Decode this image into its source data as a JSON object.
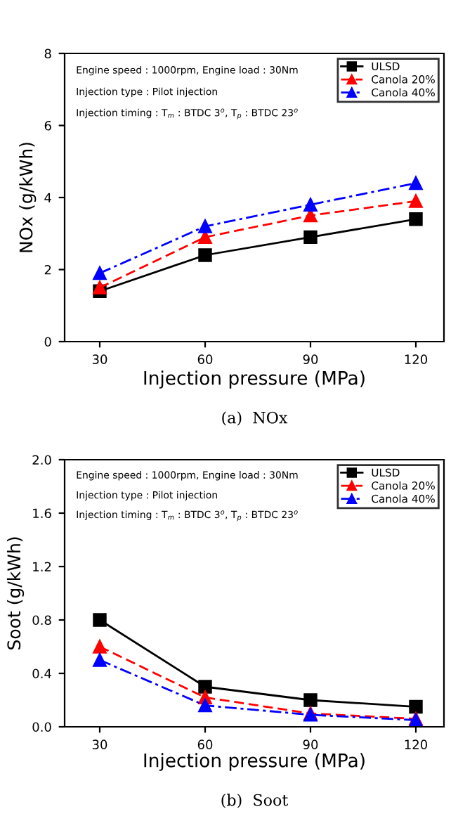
{
  "chart_data": [
    {
      "type": "line",
      "xlabel": "Injection pressure (MPa)",
      "ylabel": "NOx (g/kWh)",
      "x": [
        30,
        60,
        90,
        120
      ],
      "xlim": [
        20,
        128
      ],
      "xticks": [
        30,
        60,
        90,
        120
      ],
      "ylim": [
        0,
        8
      ],
      "yticks": [
        0,
        2,
        4,
        6,
        8
      ],
      "grid": false,
      "legend": "top right",
      "annotations": [
        "Engine speed : 1000rpm, Engine load : 30Nm",
        "Injection type : Pilot injection",
        "Injection timing : T$_{m}$ : BTDC 3$^{o}$, T$_{p}$ : BTDC 23$^{o}$",
        "(a)  NOx"
      ],
      "series": [
        {
          "name": "ULSD",
          "color": "#000000",
          "values": [
            1.4,
            2.4,
            2.9,
            3.4
          ],
          "marker": "square",
          "line_style": "solid"
        },
        {
          "name": "Canola 20%",
          "color": "#ff0000",
          "values": [
            1.5,
            2.9,
            3.5,
            3.9
          ],
          "marker": "triangle",
          "line_style": "dashed"
        },
        {
          "name": "Canola 40%",
          "color": "#0000ff",
          "values": [
            1.9,
            3.2,
            3.8,
            4.4
          ],
          "marker": "triangle",
          "line_style": "dashdot"
        }
      ]
    },
    {
      "type": "line",
      "xlabel": "Injection pressure (MPa)",
      "ylabel": "Soot (g/kWh)",
      "x": [
        30,
        60,
        90,
        120
      ],
      "xlim": [
        20,
        128
      ],
      "xticks": [
        30,
        60,
        90,
        120
      ],
      "ylim": [
        0,
        2.0
      ],
      "yticks": [
        {
          "value": 0,
          "label": "0.0"
        },
        0.4,
        0.8,
        1.2,
        1.6,
        {
          "value": 2,
          "label": "2.0"
        }
      ],
      "grid": false,
      "legend": "top right",
      "annotations": [
        "Engine speed : 1000rpm, Engine load : 30Nm",
        "Injection type : Pilot injection",
        "Injection timing : T$_{m}$ : BTDC 3$^{o}$, T$_{p}$ : BTDC 23$^{o}$",
        "(b)  Soot"
      ],
      "series": [
        {
          "name": "ULSD",
          "color": "#000000",
          "values": [
            0.8,
            0.3,
            0.2,
            0.15
          ],
          "marker": "square",
          "line_style": "solid"
        },
        {
          "name": "Canola 20%",
          "color": "#ff0000",
          "values": [
            0.6,
            0.22,
            0.1,
            0.06
          ],
          "marker": "triangle",
          "line_style": "dashed"
        },
        {
          "name": "Canola 40%",
          "color": "#0000ff",
          "values": [
            0.5,
            0.16,
            0.09,
            0.05
          ],
          "marker": "triangle",
          "line_style": "dashdot"
        }
      ]
    }
  ]
}
